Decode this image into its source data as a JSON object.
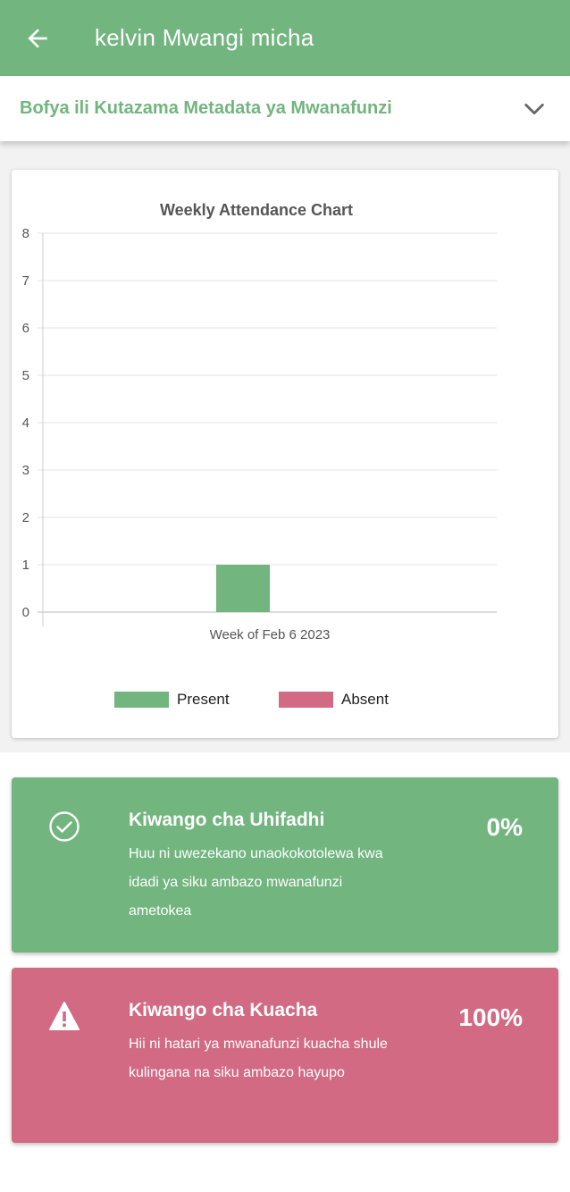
{
  "appbar": {
    "title": "kelvin Mwangi micha",
    "back_icon": "arrow-left-icon"
  },
  "metadata_bar": {
    "label": "Bofya ili Kutazama Metadata ya Mwanafunzi",
    "icon": "chevron-down-icon"
  },
  "chart_data": {
    "type": "bar",
    "title": "Weekly Attendance Chart",
    "categories": [
      "Week of Feb 6 2023"
    ],
    "series": [
      {
        "name": "Present",
        "values": [
          1
        ],
        "color": "#72b57f"
      },
      {
        "name": "Absent",
        "values": [
          0
        ],
        "color": "#d26a83"
      }
    ],
    "yticks": [
      "0",
      "1",
      "2",
      "3",
      "4",
      "5",
      "6",
      "7",
      "8"
    ],
    "ylim": [
      0,
      8
    ],
    "grid": true,
    "legend_position": "bottom"
  },
  "retention": {
    "title": "Kiwango cha Uhifadhi",
    "description": "Huu ni uwezekano unaokokotolewa kwa idadi ya siku ambazo mwanafunzi ametokea",
    "value": "0%",
    "icon": "check-circle-icon",
    "color": "#72b57f"
  },
  "dropout": {
    "title": "Kiwango cha Kuacha",
    "description": "Hii ni hatari ya mwanafunzi kuacha shule kulingana na siku ambazo hayupo",
    "value": "100%",
    "icon": "warning-icon",
    "color": "#d26a83"
  }
}
